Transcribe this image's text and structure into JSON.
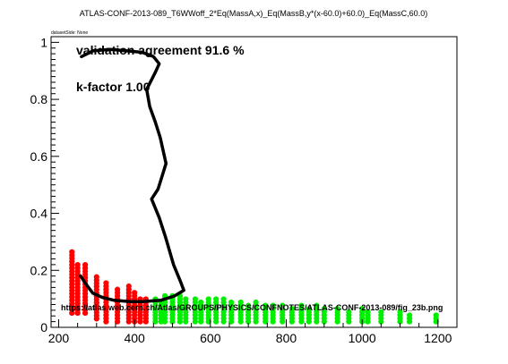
{
  "chart_data": {
    "type": "scatter",
    "title": "ATLAS-CONF-2013-089_T6WWoff_2*Eq(MassA,x)_Eq(MassB,y*(x-60.0)+60.0)_Eq(MassC,60.0)",
    "dataset_label": "datasetSide: None",
    "annotations": {
      "agreement": "validation agreement 91.6 %",
      "kfactor": "k-factor 1.00",
      "url": "https://atlas.web.cern.ch/Atlas/GROUPS/PHYSICS/CONFNOTES/ATLAS-CONF-2013-089/fig_23b.png"
    },
    "xlim": [
      180,
      1250
    ],
    "ylim": [
      0,
      1.02
    ],
    "x_ticks": [
      200,
      400,
      600,
      800,
      1000,
      1200
    ],
    "y_ticks": [
      0,
      0.2,
      0.4,
      0.6,
      0.8,
      1
    ],
    "x_tick_labels": [
      "200",
      "400",
      "600",
      "800",
      "1000",
      "1200"
    ],
    "y_tick_labels": [
      "0",
      "0.2",
      "0.4",
      "0.6",
      "0.8",
      "1"
    ],
    "grid": false,
    "series": [
      {
        "color": "#ff0000",
        "columns": [
          {
            "x": 235,
            "y": [
              0.05,
              0.27
            ]
          },
          {
            "x": 250,
            "y": [
              0.05,
              0.22
            ]
          },
          {
            "x": 270,
            "y": [
              0.05,
              0.23
            ]
          },
          {
            "x": 300,
            "y": [
              0.03,
              0.18
            ]
          },
          {
            "x": 325,
            "y": [
              0.02,
              0.16
            ]
          },
          {
            "x": 355,
            "y": [
              0.02,
              0.14
            ]
          },
          {
            "x": 385,
            "y": [
              0.02,
              0.15
            ]
          },
          {
            "x": 400,
            "y": [
              0.02,
              0.13
            ]
          },
          {
            "x": 415,
            "y": [
              0.02,
              0.1
            ]
          },
          {
            "x": 430,
            "y": [
              0.02,
              0.11
            ]
          }
        ]
      },
      {
        "color": "#00ee00",
        "columns": [
          {
            "x": 455,
            "y": [
              0.02,
              0.11
            ]
          },
          {
            "x": 470,
            "y": [
              0.02,
              0.09
            ]
          },
          {
            "x": 480,
            "y": [
              0.02,
              0.12
            ]
          },
          {
            "x": 500,
            "y": [
              0.02,
              0.12
            ]
          },
          {
            "x": 520,
            "y": [
              0.02,
              0.12
            ]
          },
          {
            "x": 535,
            "y": [
              0.02,
              0.11
            ]
          },
          {
            "x": 560,
            "y": [
              0.02,
              0.11
            ]
          },
          {
            "x": 575,
            "y": [
              0.02,
              0.09
            ]
          },
          {
            "x": 595,
            "y": [
              0.02,
              0.11
            ]
          },
          {
            "x": 615,
            "y": [
              0.02,
              0.1
            ]
          },
          {
            "x": 635,
            "y": [
              0.02,
              0.1
            ]
          },
          {
            "x": 655,
            "y": [
              0.02,
              0.09
            ]
          },
          {
            "x": 680,
            "y": [
              0.02,
              0.09
            ]
          },
          {
            "x": 700,
            "y": [
              0.02,
              0.08
            ]
          },
          {
            "x": 720,
            "y": [
              0.02,
              0.09
            ]
          },
          {
            "x": 745,
            "y": [
              0.02,
              0.08
            ]
          },
          {
            "x": 765,
            "y": [
              0.02,
              0.08
            ]
          },
          {
            "x": 790,
            "y": [
              0.02,
              0.08
            ]
          },
          {
            "x": 815,
            "y": [
              0.02,
              0.07
            ]
          },
          {
            "x": 840,
            "y": [
              0.02,
              0.08
            ]
          },
          {
            "x": 860,
            "y": [
              0.02,
              0.07
            ]
          },
          {
            "x": 880,
            "y": [
              0.02,
              0.08
            ]
          },
          {
            "x": 900,
            "y": [
              0.02,
              0.07
            ]
          },
          {
            "x": 935,
            "y": [
              0.02,
              0.07
            ]
          },
          {
            "x": 965,
            "y": [
              0.02,
              0.06
            ]
          },
          {
            "x": 1000,
            "y": [
              0.02,
              0.07
            ]
          },
          {
            "x": 1015,
            "y": [
              0.02,
              0.06
            ]
          },
          {
            "x": 1050,
            "y": [
              0.02,
              0.06
            ]
          },
          {
            "x": 1100,
            "y": [
              0.02,
              0.06
            ]
          },
          {
            "x": 1125,
            "y": [
              0.02,
              0.05
            ]
          },
          {
            "x": 1195,
            "y": [
              0.02,
              0.05
            ]
          }
        ]
      }
    ],
    "line": {
      "color": "#000000",
      "points": [
        [
          260,
          0.95
        ],
        [
          290,
          0.97
        ],
        [
          335,
          0.975
        ],
        [
          380,
          0.97
        ],
        [
          420,
          0.965
        ],
        [
          450,
          0.95
        ],
        [
          465,
          0.925
        ],
        [
          455,
          0.895
        ],
        [
          432,
          0.835
        ],
        [
          440,
          0.775
        ],
        [
          455,
          0.72
        ],
        [
          468,
          0.665
        ],
        [
          483,
          0.575
        ],
        [
          462,
          0.485
        ],
        [
          445,
          0.45
        ],
        [
          465,
          0.385
        ],
        [
          482,
          0.315
        ],
        [
          503,
          0.22
        ],
        [
          520,
          0.165
        ],
        [
          530,
          0.13
        ],
        [
          505,
          0.11
        ],
        [
          470,
          0.095
        ],
        [
          420,
          0.09
        ],
        [
          390,
          0.09
        ],
        [
          345,
          0.095
        ],
        [
          315,
          0.105
        ],
        [
          290,
          0.12
        ],
        [
          270,
          0.155
        ],
        [
          258,
          0.18
        ]
      ]
    }
  }
}
